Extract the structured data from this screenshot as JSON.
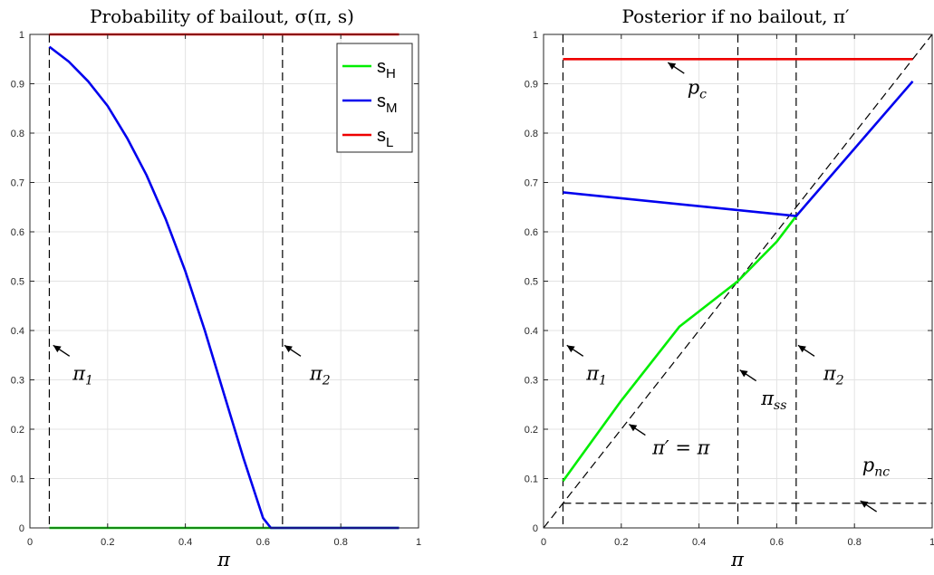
{
  "chart_data": [
    {
      "type": "line",
      "title": "Probability of bailout, σ(π, s)",
      "xlabel": "π",
      "ylabel": "",
      "xlim": [
        0,
        1
      ],
      "ylim": [
        0,
        1
      ],
      "xticks": [
        "0",
        "0.2",
        "0.4",
        "0.6",
        "0.8",
        "1"
      ],
      "yticks": [
        "0",
        "0.1",
        "0.2",
        "0.3",
        "0.4",
        "0.5",
        "0.6",
        "0.7",
        "0.8",
        "0.9",
        "1"
      ],
      "grid": true,
      "legend_position": "top-right",
      "legend": [
        {
          "main": "s",
          "sub": "H",
          "color": "#00ee00"
        },
        {
          "main": "s",
          "sub": "M",
          "color": "#0000ee"
        },
        {
          "main": "s",
          "sub": "L",
          "color": "#ee0000"
        }
      ],
      "series": [
        {
          "name": "sH",
          "color": "#00ee00",
          "x": [
            0.05,
            0.65,
            0.95
          ],
          "y": [
            0,
            0,
            0
          ]
        },
        {
          "name": "sM",
          "color": "#0000ee",
          "x": [
            0.05,
            0.1,
            0.15,
            0.2,
            0.25,
            0.3,
            0.35,
            0.4,
            0.45,
            0.5,
            0.55,
            0.6,
            0.62,
            0.64,
            0.65,
            0.7,
            0.8,
            0.95
          ],
          "y": [
            0.975,
            0.945,
            0.905,
            0.855,
            0.79,
            0.715,
            0.625,
            0.52,
            0.4,
            0.27,
            0.14,
            0.02,
            0.0,
            0.0,
            0.0,
            0.0,
            0.0,
            0.0
          ]
        },
        {
          "name": "sL",
          "color": "#ee0000",
          "x": [
            0.05,
            0.95
          ],
          "y": [
            1,
            1
          ]
        }
      ],
      "reference_lines": [
        {
          "orientation": "vertical",
          "value": 0.05,
          "style": "dashed"
        },
        {
          "orientation": "vertical",
          "value": 0.65,
          "style": "dashed"
        }
      ],
      "annotations": [
        {
          "base": "π",
          "sub": "1",
          "arrow_to": [
            0.06,
            0.37
          ],
          "text_at": [
            0.11,
            0.3
          ]
        },
        {
          "base": "π",
          "sub": "2",
          "arrow_to": [
            0.655,
            0.37
          ],
          "text_at": [
            0.72,
            0.3
          ]
        }
      ]
    },
    {
      "type": "line",
      "title": "Posterior if no bailout, π′",
      "xlabel": "π",
      "ylabel": "",
      "xlim": [
        0,
        1
      ],
      "ylim": [
        0,
        1
      ],
      "xticks": [
        "0",
        "0.2",
        "0.4",
        "0.6",
        "0.8",
        "1"
      ],
      "yticks": [
        "0",
        "0.1",
        "0.2",
        "0.3",
        "0.4",
        "0.5",
        "0.6",
        "0.7",
        "0.8",
        "0.9",
        "1"
      ],
      "grid": true,
      "series": [
        {
          "name": "sH",
          "color": "#00ee00",
          "x": [
            0.05,
            0.2,
            0.35,
            0.5,
            0.6,
            0.65
          ],
          "y": [
            0.095,
            0.258,
            0.408,
            0.5,
            0.58,
            0.632
          ]
        },
        {
          "name": "sM",
          "color": "#0000ee",
          "x": [
            0.05,
            0.65,
            0.95
          ],
          "y": [
            0.68,
            0.632,
            0.905
          ]
        },
        {
          "name": "sL",
          "color": "#ee0000",
          "x": [
            0.05,
            0.95
          ],
          "y": [
            0.95,
            0.95
          ]
        }
      ],
      "reference_lines": [
        {
          "orientation": "vertical",
          "value": 0.05,
          "style": "dashed"
        },
        {
          "orientation": "vertical",
          "value": 0.5,
          "style": "dashed"
        },
        {
          "orientation": "vertical",
          "value": 0.65,
          "style": "dashed"
        },
        {
          "orientation": "horizontal",
          "value": 0.05,
          "from": 0.05,
          "to": 1,
          "style": "dashed"
        },
        {
          "orientation": "diagonal",
          "from": [
            0,
            0
          ],
          "to": [
            1,
            1
          ],
          "style": "dashed"
        }
      ],
      "annotations": [
        {
          "base": "p",
          "sub": "c",
          "arrow_to": [
            0.32,
            0.943
          ],
          "text_at": [
            0.37,
            0.88
          ]
        },
        {
          "base": "π",
          "sub": "1",
          "arrow_to": [
            0.06,
            0.37
          ],
          "text_at": [
            0.11,
            0.3
          ]
        },
        {
          "base": "π",
          "sub": "2",
          "arrow_to": [
            0.655,
            0.37
          ],
          "text_at": [
            0.72,
            0.3
          ]
        },
        {
          "base": "π",
          "sub": "ss",
          "arrow_to": [
            0.505,
            0.32
          ],
          "text_at": [
            0.56,
            0.25
          ]
        },
        {
          "base": "π′ = π",
          "sub": "",
          "arrow_to": [
            0.22,
            0.21
          ],
          "text_at": [
            0.28,
            0.15
          ]
        },
        {
          "base": "p",
          "sub": "nc",
          "arrow_to": [
            0.815,
            0.055
          ],
          "text_at": [
            0.82,
            0.115
          ]
        }
      ]
    }
  ]
}
